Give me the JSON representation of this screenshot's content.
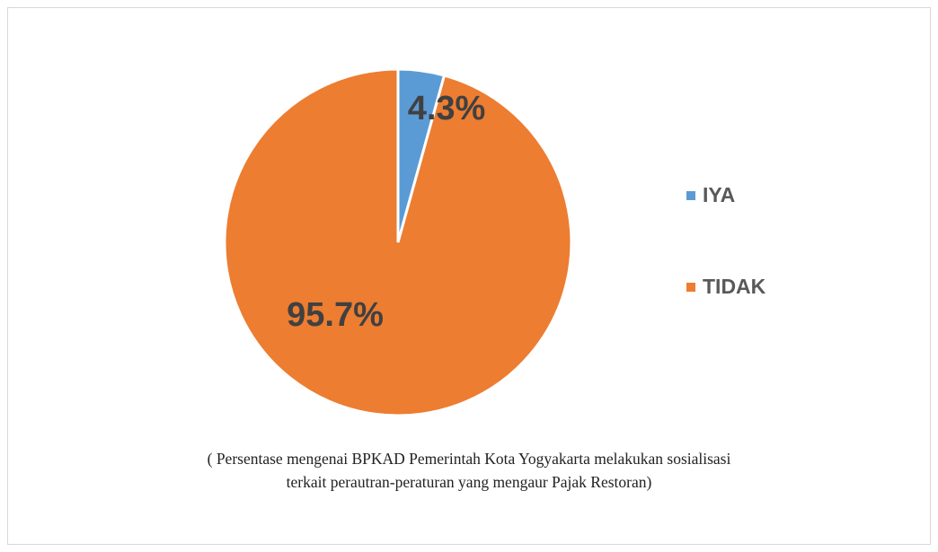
{
  "chart_data": {
    "type": "pie",
    "categories": [
      "IYA",
      "TIDAK"
    ],
    "values": [
      4.3,
      95.7
    ],
    "value_labels": [
      "4.3%",
      "95.7%"
    ],
    "colors": [
      "#5b9bd5",
      "#ed7d31"
    ],
    "legend": "right",
    "caption": [
      "( Persentase mengenai BPKAD Pemerintah Kota Yogyakarta melakukan sosialisasi",
      "terkait perautran-peraturan yang mengaur Pajak Restoran)"
    ]
  }
}
